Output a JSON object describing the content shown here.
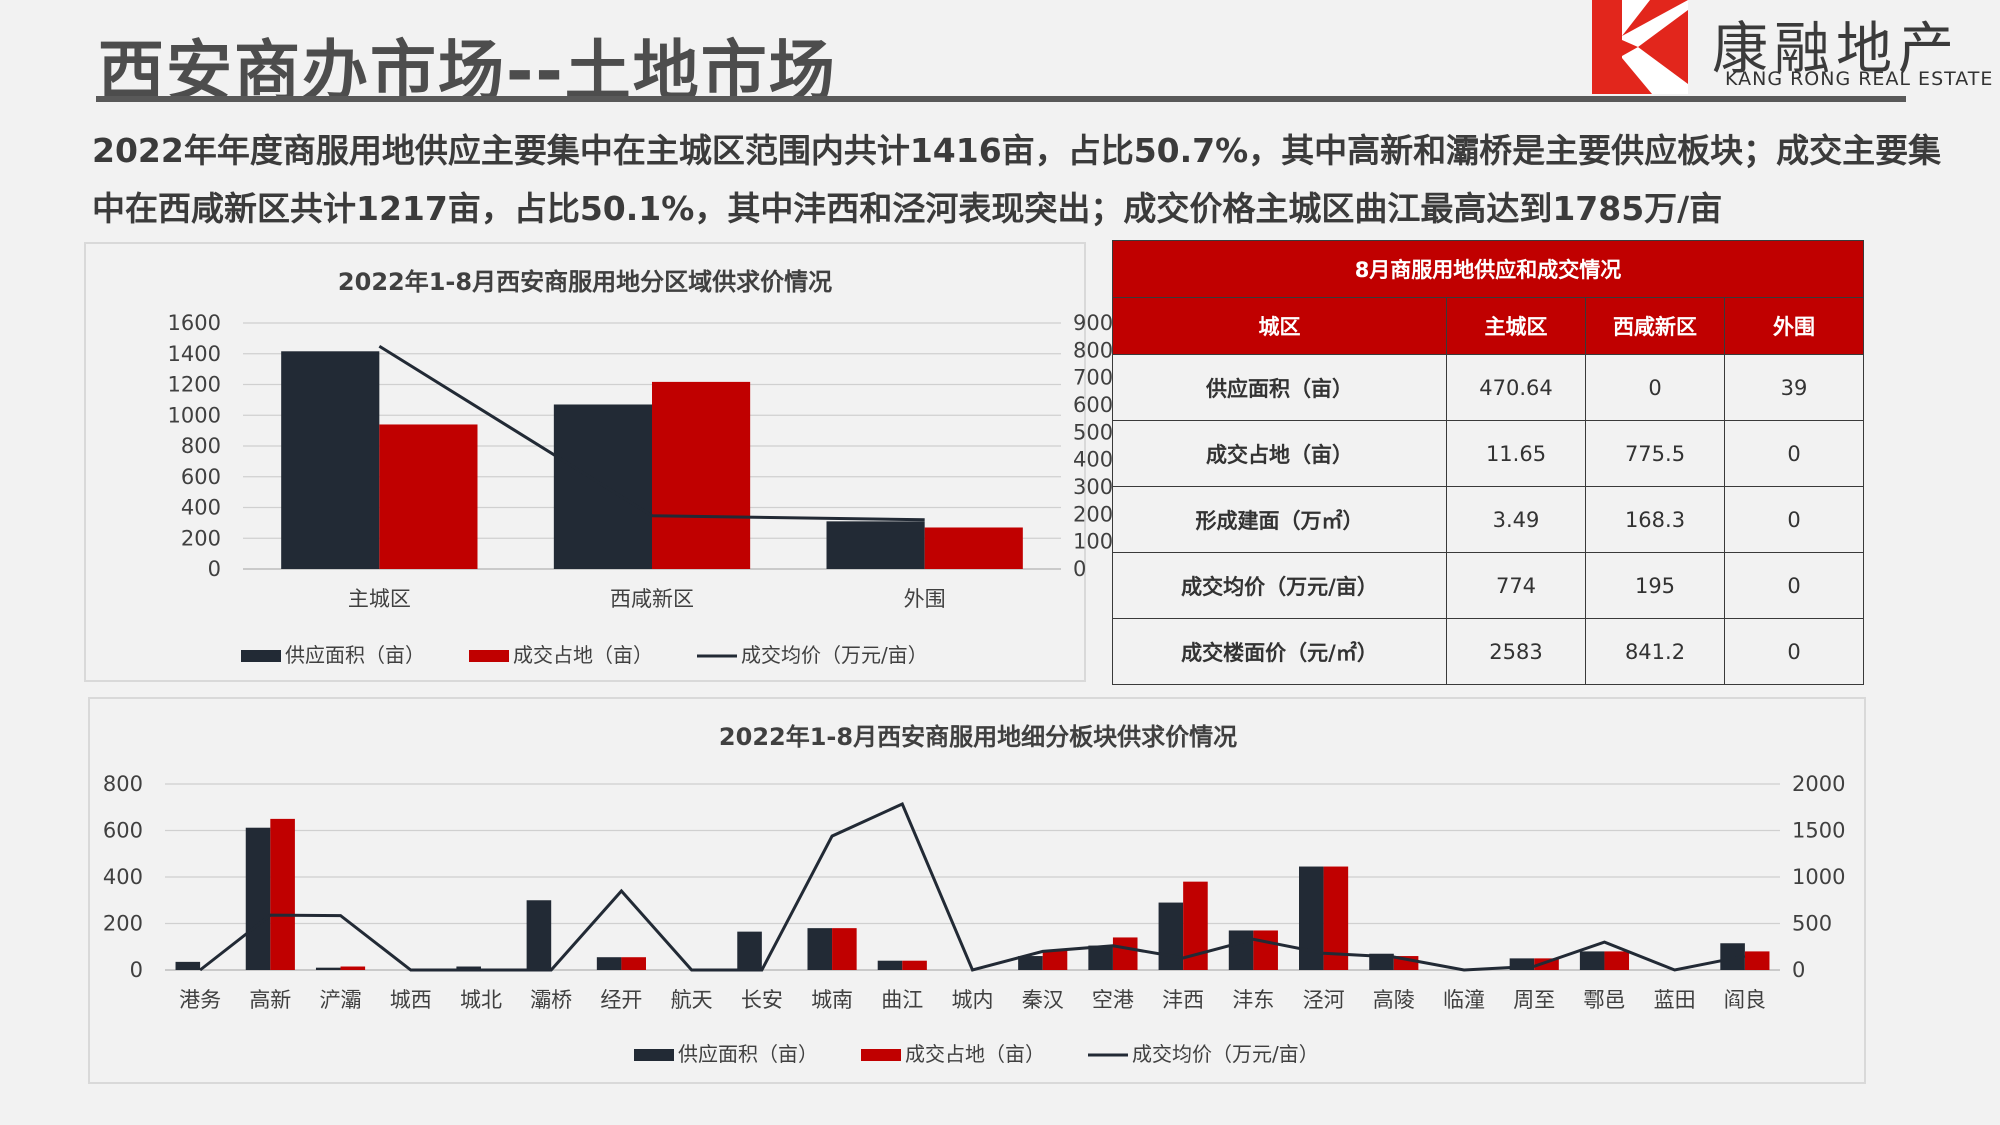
{
  "header": {
    "title": "西安商办市场--土地市场",
    "logo_cn": "康融地产",
    "logo_en": "KANG RONG REAL ESTATE",
    "brand_color": "#e2261c"
  },
  "summary": "2022年年度商服用地供应主要集中在主城区范围内共计1416亩，占比50.7%，其中高新和灞桥是主要供应板块；成交主要集中在西咸新区共计1217亩，占比50.1%，其中沣西和泾河表现突出；成交价格主城区曲江最高达到1785万/亩",
  "chart_data": [
    {
      "type": "bar",
      "title": "2022年1-8月西安商服用地分区域供求价情况",
      "categories": [
        "主城区",
        "西咸新区",
        "外围"
      ],
      "series": [
        {
          "name": "供应面积（亩）",
          "kind": "bar",
          "axis": "left",
          "color": "#222a35",
          "values": [
            1416,
            1070,
            310
          ]
        },
        {
          "name": "成交占地（亩）",
          "kind": "bar",
          "axis": "left",
          "color": "#c00000",
          "values": [
            940,
            1217,
            270
          ]
        },
        {
          "name": "成交均价（万元/亩）",
          "kind": "line",
          "axis": "right",
          "color": "#222a35",
          "values": [
            815,
            195,
            180
          ]
        }
      ],
      "ylim": [
        0,
        1600
      ],
      "yticks": [
        0,
        200,
        400,
        600,
        800,
        1000,
        1200,
        1400,
        1600
      ],
      "y2lim": [
        0,
        900
      ],
      "y2ticks": [
        0,
        100,
        200,
        300,
        400,
        500,
        600,
        700,
        800,
        900
      ],
      "grid": true,
      "legend": "bottom"
    },
    {
      "type": "bar",
      "title": "2022年1-8月西安商服用地细分板块供求价情况",
      "categories": [
        "港务",
        "高新",
        "浐灞",
        "城西",
        "城北",
        "灞桥",
        "经开",
        "航天",
        "长安",
        "城南",
        "曲江",
        "城内",
        "秦汉",
        "空港",
        "沣西",
        "沣东",
        "泾河",
        "高陵",
        "临潼",
        "周至",
        "鄠邑",
        "蓝田",
        "阎良"
      ],
      "series": [
        {
          "name": "供应面积（亩）",
          "kind": "bar",
          "axis": "left",
          "color": "#222a35",
          "values": [
            35,
            612,
            10,
            0,
            15,
            300,
            55,
            0,
            165,
            180,
            40,
            0,
            60,
            105,
            290,
            170,
            445,
            70,
            0,
            50,
            80,
            0,
            115
          ]
        },
        {
          "name": "成交占地（亩）",
          "kind": "bar",
          "axis": "left",
          "color": "#c00000",
          "values": [
            0,
            650,
            15,
            0,
            0,
            0,
            55,
            0,
            0,
            180,
            40,
            0,
            85,
            140,
            380,
            170,
            445,
            60,
            0,
            50,
            80,
            0,
            80
          ]
        },
        {
          "name": "成交均价（万元/亩）",
          "kind": "line",
          "axis": "right",
          "color": "#222a35",
          "values": [
            0,
            590,
            585,
            0,
            0,
            0,
            850,
            0,
            0,
            1440,
            1785,
            0,
            200,
            260,
            130,
            330,
            180,
            140,
            0,
            40,
            300,
            0,
            150
          ]
        }
      ],
      "ylim": [
        0,
        800
      ],
      "yticks": [
        0,
        200,
        400,
        600,
        800
      ],
      "y2lim": [
        0,
        2000
      ],
      "y2ticks": [
        0,
        500,
        1000,
        1500,
        2000
      ],
      "grid": true,
      "legend": "bottom"
    }
  ],
  "table": {
    "caption": "8月商服用地供应和成交情况",
    "headers": [
      "城区",
      "主城区",
      "西咸新区",
      "外围"
    ],
    "rows": [
      [
        "供应面积（亩）",
        "470.64",
        "0",
        "39"
      ],
      [
        "成交占地（亩）",
        "11.65",
        "775.5",
        "0"
      ],
      [
        "形成建面（万㎡）",
        "3.49",
        "168.3",
        "0"
      ],
      [
        "成交均价（万元/亩）",
        "774",
        "195",
        "0"
      ],
      [
        "成交楼面价（元/㎡）",
        "2583",
        "841.2",
        "0"
      ]
    ]
  }
}
